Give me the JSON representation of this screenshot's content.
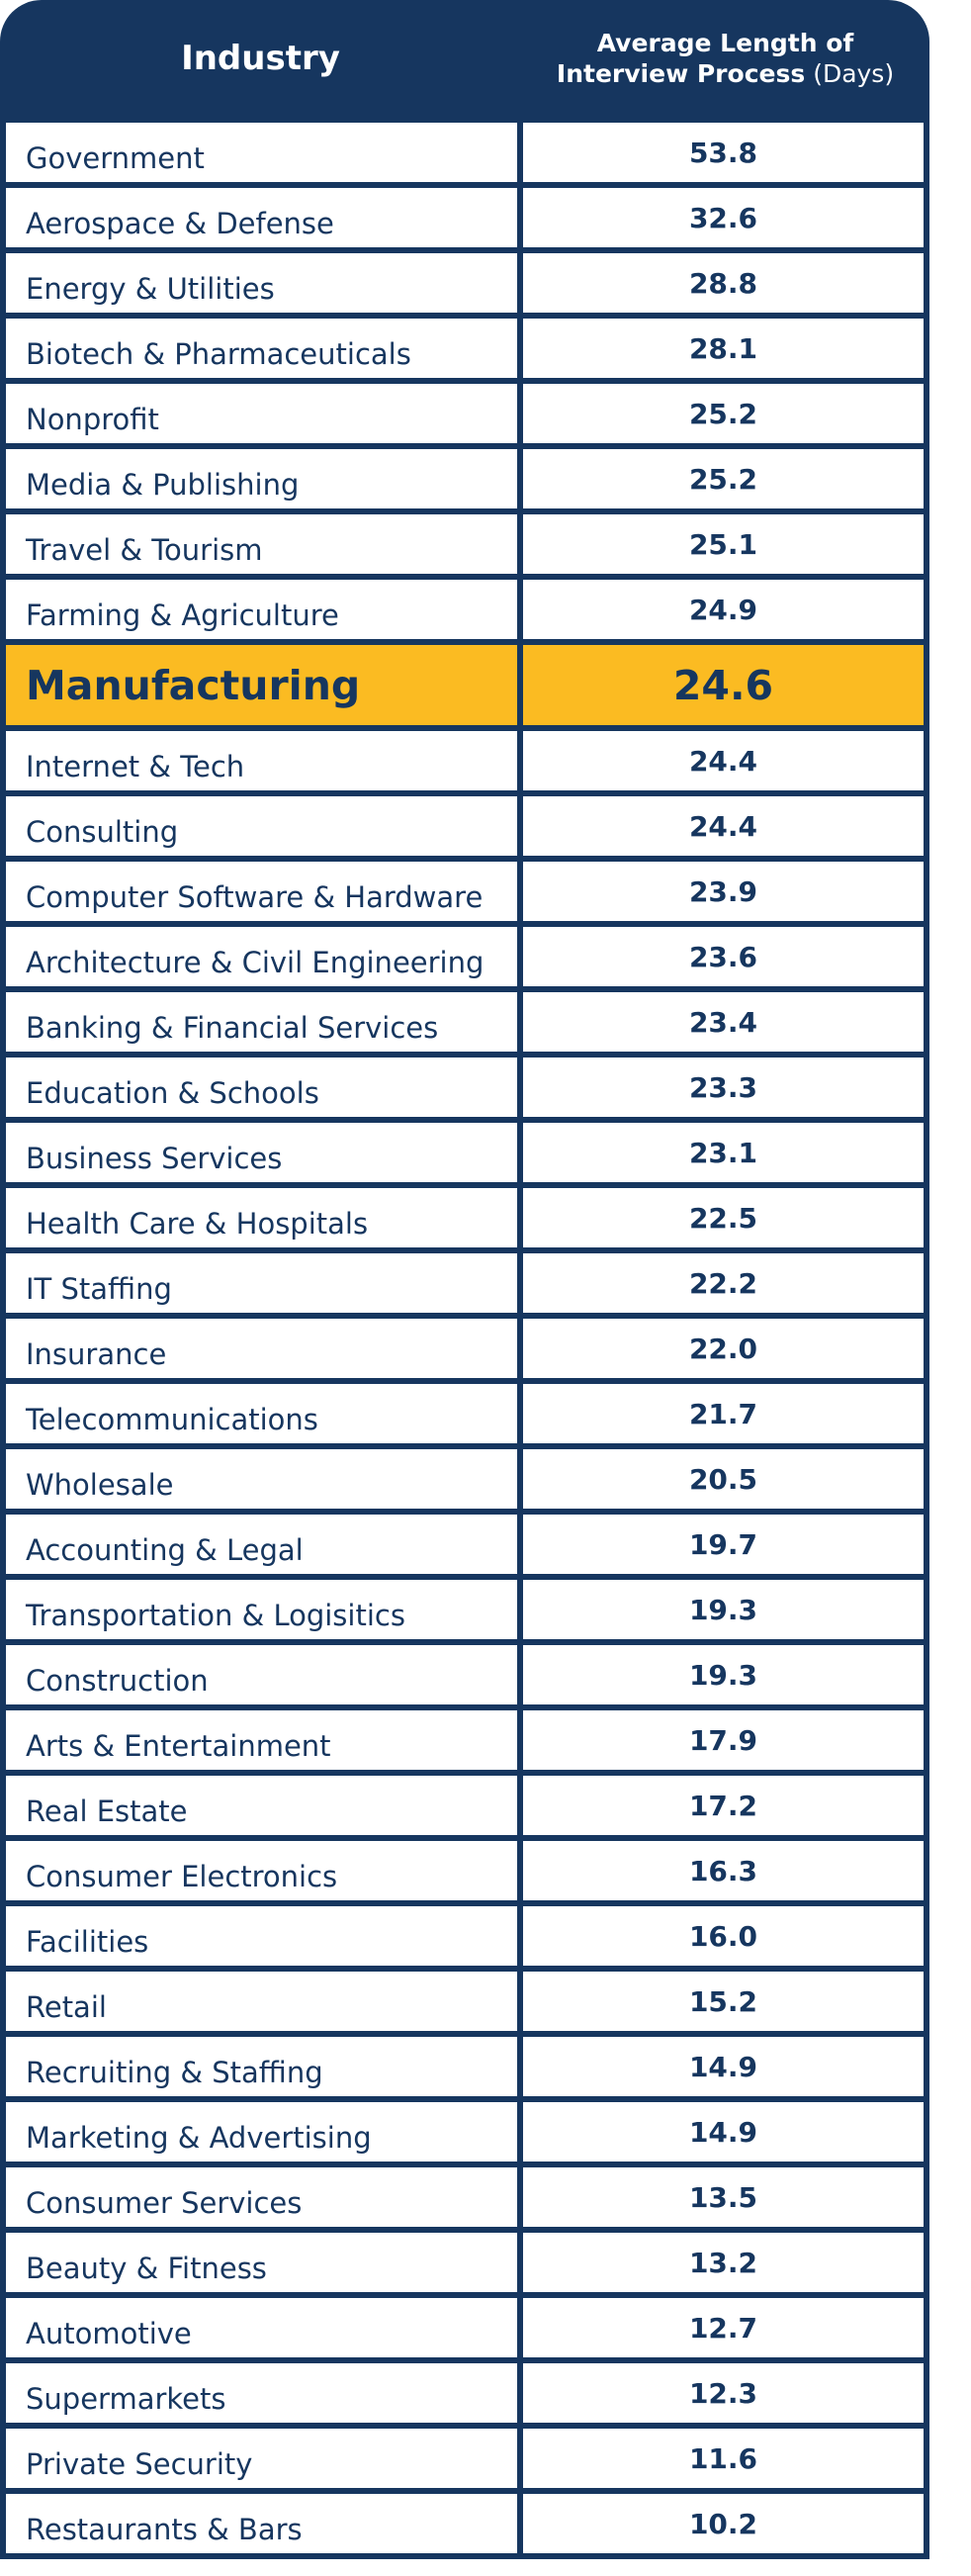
{
  "chart_data": {
    "type": "table",
    "columns": [
      "Industry",
      "Average Length of Interview Process (Days)"
    ],
    "header": {
      "industry": "Industry",
      "value_line1": "Average Length of",
      "value_line2_bold": "Interview Process",
      "value_line2_unit": "(Days)"
    },
    "highlight_color": "#fbbb22",
    "border_color": "#16365f",
    "rows": [
      {
        "industry": "Government",
        "days": "53.8"
      },
      {
        "industry": "Aerospace & Defense",
        "days": "32.6"
      },
      {
        "industry": "Energy & Utilities",
        "days": "28.8"
      },
      {
        "industry": "Biotech & Pharmaceuticals",
        "days": "28.1"
      },
      {
        "industry": "Nonprofit",
        "days": "25.2"
      },
      {
        "industry": "Media & Publishing",
        "days": "25.2"
      },
      {
        "industry": "Travel & Tourism",
        "days": "25.1"
      },
      {
        "industry": "Farming & Agriculture",
        "days": "24.9"
      },
      {
        "industry": "Manufacturing",
        "days": "24.6",
        "highlight": true
      },
      {
        "industry": "Internet & Tech",
        "days": "24.4"
      },
      {
        "industry": "Consulting",
        "days": "24.4"
      },
      {
        "industry": "Computer Software & Hardware",
        "days": "23.9"
      },
      {
        "industry": "Architecture & Civil Engineering",
        "days": "23.6"
      },
      {
        "industry": "Banking & Financial Services",
        "days": "23.4"
      },
      {
        "industry": "Education & Schools",
        "days": "23.3"
      },
      {
        "industry": "Business Services",
        "days": "23.1"
      },
      {
        "industry": "Health Care & Hospitals",
        "days": "22.5"
      },
      {
        "industry": "IT Staffing",
        "days": "22.2"
      },
      {
        "industry": "Insurance",
        "days": "22.0"
      },
      {
        "industry": "Telecommunications",
        "days": "21.7"
      },
      {
        "industry": "Wholesale",
        "days": "20.5"
      },
      {
        "industry": "Accounting & Legal",
        "days": "19.7"
      },
      {
        "industry": "Transportation & Logisitics",
        "days": "19.3"
      },
      {
        "industry": "Construction",
        "days": "19.3"
      },
      {
        "industry": "Arts & Entertainment",
        "days": "17.9"
      },
      {
        "industry": "Real Estate",
        "days": "17.2"
      },
      {
        "industry": "Consumer Electronics",
        "days": "16.3"
      },
      {
        "industry": "Facilities",
        "days": "16.0"
      },
      {
        "industry": "Retail",
        "days": "15.2"
      },
      {
        "industry": "Recruiting & Staffing",
        "days": "14.9"
      },
      {
        "industry": "Marketing & Advertising",
        "days": "14.9"
      },
      {
        "industry": "Consumer Services",
        "days": "13.5"
      },
      {
        "industry": "Beauty & Fitness",
        "days": "13.2"
      },
      {
        "industry": "Automotive",
        "days": "12.7"
      },
      {
        "industry": "Supermarkets",
        "days": "12.3"
      },
      {
        "industry": "Private Security",
        "days": "11.6"
      },
      {
        "industry": "Restaurants & Bars",
        "days": "10.2"
      }
    ]
  }
}
